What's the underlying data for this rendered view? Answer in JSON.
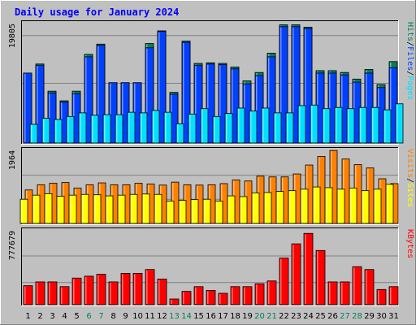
{
  "title": "Daily usage for January 2024",
  "colors": {
    "background": "#c0c0c0",
    "title_text": "#0000ff",
    "hits": "#00805c",
    "files": "#0040ff",
    "pages": "#00e0ff",
    "visits": "#ff8000",
    "sites": "#ffff00",
    "kbytes": "#ff0000",
    "weekend_label": "#00805c",
    "weekday_label": "#000000"
  },
  "chart_data": [
    {
      "type": "bar",
      "panel": "requests",
      "max_label": "19805",
      "ymax": 19805,
      "legend": [
        "Pages",
        "Files",
        "Hits"
      ],
      "series": [
        {
          "name": "Hits",
          "values": [
            11600,
            13100,
            8600,
            7000,
            8600,
            14700,
            16400,
            10000,
            10000,
            10000,
            16500,
            18600,
            8400,
            16900,
            13200,
            13300,
            13200,
            12600,
            10300,
            11700,
            14900,
            19600,
            19600,
            19200,
            12000,
            12000,
            11700,
            10600,
            12200,
            9700,
            13500
          ]
        },
        {
          "name": "Files",
          "values": [
            11600,
            12900,
            8300,
            6800,
            8200,
            14300,
            16200,
            10000,
            10000,
            10000,
            15800,
            18500,
            8100,
            16700,
            12900,
            13100,
            13000,
            12300,
            9800,
            11200,
            14300,
            19300,
            19300,
            19000,
            11600,
            11600,
            11300,
            10100,
            11600,
            9200,
            12500
          ]
        },
        {
          "name": "Pages",
          "values": [
            3100,
            4100,
            3900,
            4400,
            5000,
            4600,
            4700,
            4700,
            5100,
            5000,
            5400,
            5100,
            3200,
            4800,
            5700,
            4400,
            4900,
            5800,
            5300,
            5800,
            5000,
            5000,
            6200,
            6300,
            5700,
            5900,
            5700,
            5900,
            5900,
            5500,
            6500
          ]
        }
      ]
    },
    {
      "type": "bar",
      "panel": "visits",
      "max_label": "1964",
      "ymax": 1964,
      "legend": [
        "Sites",
        "Visits"
      ],
      "series": [
        {
          "name": "Visits",
          "values": [
            900,
            1040,
            1080,
            1100,
            950,
            1040,
            1090,
            1040,
            1040,
            1080,
            1060,
            1030,
            1110,
            1040,
            1030,
            1040,
            1070,
            1170,
            1140,
            1270,
            1250,
            1250,
            1330,
            1570,
            1800,
            1960,
            1730,
            1580,
            1490,
            1200,
            1070
          ]
        },
        {
          "name": "Sites",
          "values": [
            650,
            760,
            800,
            730,
            760,
            780,
            770,
            740,
            760,
            780,
            790,
            780,
            600,
            620,
            640,
            650,
            600,
            740,
            720,
            820,
            830,
            860,
            880,
            920,
            980,
            960,
            920,
            950,
            880,
            920,
            1050
          ]
        }
      ]
    },
    {
      "type": "bar",
      "panel": "kbytes",
      "max_label": "777679",
      "ymax": 777679,
      "legend": [
        "KBytes"
      ],
      "series": [
        {
          "name": "KBytes",
          "values": [
            200000,
            240000,
            240000,
            190000,
            280000,
            300000,
            320000,
            240000,
            330000,
            330000,
            370000,
            270000,
            60000,
            140000,
            190000,
            150000,
            120000,
            190000,
            190000,
            220000,
            250000,
            490000,
            640000,
            750000,
            570000,
            240000,
            240000,
            400000,
            370000,
            160000,
            190000
          ]
        }
      ]
    }
  ],
  "days": [
    "1",
    "2",
    "3",
    "4",
    "5",
    "6",
    "7",
    "8",
    "9",
    "10",
    "11",
    "12",
    "13",
    "14",
    "15",
    "16",
    "17",
    "18",
    "19",
    "20",
    "21",
    "22",
    "23",
    "24",
    "25",
    "26",
    "27",
    "28",
    "29",
    "30",
    "31"
  ],
  "weekend_days": [
    6,
    7,
    13,
    14,
    20,
    21,
    27,
    28
  ]
}
